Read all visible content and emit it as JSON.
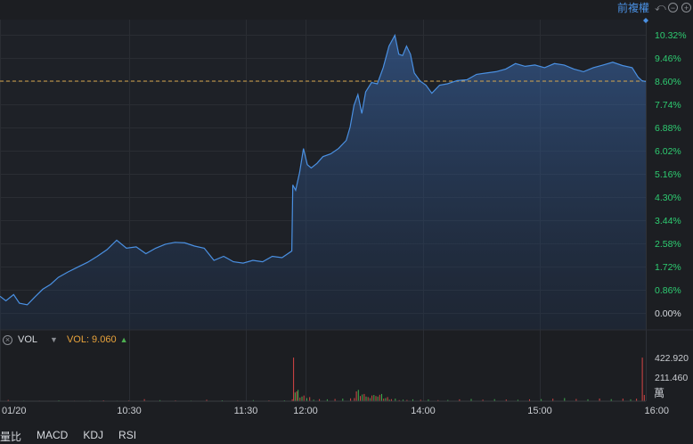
{
  "toolbar": {
    "adjust_label": "前複權",
    "undo_icon": "undo-icon",
    "zoom_out_icon": "zoom-out-icon",
    "zoom_in_icon": "zoom-in-icon"
  },
  "volume_panel": {
    "name": "VOL",
    "value_label": "VOL: 9.060",
    "close_icon": "close-icon",
    "dropdown_icon": "chevron-down-icon"
  },
  "indicator_tabs": [
    "量比",
    "MACD",
    "KDJ",
    "RSI"
  ],
  "colors": {
    "price_line": "#4a90e2",
    "ref_line": "#d4a24a",
    "axis_up": "#2ecc71",
    "vol_up": "#d64545",
    "vol_down": "#3fae4f"
  },
  "chart_data": [
    {
      "type": "area",
      "y_ticks": [
        "10.32%",
        "9.46%",
        "8.60%",
        "7.74%",
        "6.88%",
        "6.02%",
        "5.16%",
        "4.30%",
        "3.44%",
        "2.58%",
        "1.72%",
        "0.86%",
        "0.00%"
      ],
      "x_ticks": [
        "01/20",
        "10:30",
        "11:30",
        "12:00",
        "14:00",
        "15:00",
        "16:00"
      ],
      "ylim": [
        0,
        10.32
      ],
      "reference_line": 8.6,
      "series": [
        {
          "x": [
            0,
            3,
            7,
            10,
            14,
            18,
            22,
            26,
            30,
            35,
            40,
            45,
            50,
            55,
            60,
            65,
            70,
            75,
            80,
            85,
            90,
            95,
            100,
            105,
            110,
            115,
            120,
            125,
            130,
            135,
            140,
            145,
            150,
            150.5,
            152,
            154,
            156,
            158,
            160,
            163,
            166,
            170,
            174,
            178,
            180,
            182,
            184,
            186,
            188,
            191,
            194,
            197,
            200,
            203,
            205,
            207,
            209,
            211,
            213,
            216,
            219,
            222,
            226,
            230,
            235,
            240,
            245,
            250,
            255,
            260,
            265,
            270,
            275,
            280,
            285,
            290,
            295,
            300,
            305,
            310,
            315,
            320,
            325,
            328,
            330,
            332
          ],
          "values": [
            0.62,
            0.45,
            0.68,
            0.36,
            0.3,
            0.6,
            0.88,
            1.06,
            1.32,
            1.52,
            1.7,
            1.88,
            2.1,
            2.35,
            2.7,
            2.4,
            2.45,
            2.2,
            2.4,
            2.55,
            2.62,
            2.6,
            2.48,
            2.4,
            1.95,
            2.1,
            1.9,
            1.85,
            1.95,
            1.9,
            2.1,
            2.05,
            2.3,
            4.75,
            4.55,
            5.2,
            6.1,
            5.5,
            5.38,
            5.55,
            5.8,
            5.9,
            6.1,
            6.4,
            6.9,
            7.7,
            8.1,
            7.4,
            8.2,
            8.55,
            8.5,
            9.1,
            9.9,
            10.3,
            9.6,
            9.55,
            9.9,
            9.6,
            8.9,
            8.6,
            8.45,
            8.15,
            8.45,
            8.5,
            8.62,
            8.65,
            8.85,
            8.9,
            8.95,
            9.05,
            9.25,
            9.15,
            9.2,
            9.1,
            9.25,
            9.2,
            9.05,
            8.95,
            9.1,
            9.2,
            9.3,
            9.18,
            9.1,
            8.75,
            8.62,
            8.58
          ]
        }
      ]
    },
    {
      "type": "bar",
      "title": "VOL",
      "y_ticks": [
        "422.920",
        "211.460"
      ],
      "y_unit": "萬",
      "ylim": [
        0,
        422.92
      ],
      "series": [
        {
          "x": [
            4,
            12,
            20,
            30,
            38,
            46,
            53,
            60,
            66,
            74,
            82,
            90,
            98,
            106,
            114,
            122,
            130,
            138,
            146,
            150,
            150.7,
            151.5,
            152.3,
            153,
            154,
            155,
            156,
            157.5,
            159,
            161,
            164,
            168,
            172,
            176,
            180,
            182,
            183,
            184,
            185,
            186,
            187,
            188,
            189,
            190,
            191,
            192,
            193,
            194,
            195,
            196,
            197,
            198,
            199,
            200,
            201,
            203,
            205,
            207,
            209,
            212,
            216,
            220,
            225,
            230,
            236,
            242,
            248,
            254,
            260,
            266,
            272,
            278,
            284,
            290,
            296,
            302,
            308,
            314,
            320,
            324,
            327,
            330,
            331
          ],
          "values": [
            12,
            6,
            5,
            8,
            5,
            6,
            9,
            5,
            7,
            20,
            10,
            8,
            6,
            14,
            9,
            7,
            10,
            8,
            9,
            18,
            422,
            85,
            95,
            110,
            35,
            45,
            55,
            30,
            40,
            15,
            20,
            18,
            22,
            25,
            28,
            30,
            95,
            110,
            50,
            65,
            70,
            45,
            40,
            30,
            55,
            60,
            50,
            45,
            62,
            70,
            25,
            30,
            40,
            15,
            20,
            25,
            10,
            15,
            12,
            18,
            14,
            16,
            10,
            12,
            18,
            22,
            15,
            20,
            16,
            14,
            18,
            20,
            24,
            30,
            22,
            18,
            26,
            20,
            25,
            18,
            24,
            422,
            60
          ],
          "direction": [
            "up",
            "dn",
            "up",
            "dn",
            "up",
            "dn",
            "up",
            "dn",
            "up",
            "up",
            "dn",
            "up",
            "dn",
            "up",
            "dn",
            "up",
            "dn",
            "up",
            "dn",
            "up",
            "up",
            "dn",
            "up",
            "dn",
            "up",
            "dn",
            "up",
            "dn",
            "up",
            "dn",
            "up",
            "dn",
            "up",
            "dn",
            "up",
            "up",
            "up",
            "dn",
            "up",
            "dn",
            "up",
            "dn",
            "up",
            "dn",
            "up",
            "dn",
            "up",
            "dn",
            "up",
            "dn",
            "up",
            "dn",
            "up",
            "dn",
            "up",
            "dn",
            "up",
            "dn",
            "up",
            "dn",
            "up",
            "dn",
            "up",
            "dn",
            "up",
            "dn",
            "up",
            "dn",
            "up",
            "dn",
            "up",
            "dn",
            "up",
            "dn",
            "up",
            "dn",
            "up",
            "dn",
            "up",
            "dn",
            "up",
            "up",
            "up"
          ]
        }
      ]
    }
  ]
}
